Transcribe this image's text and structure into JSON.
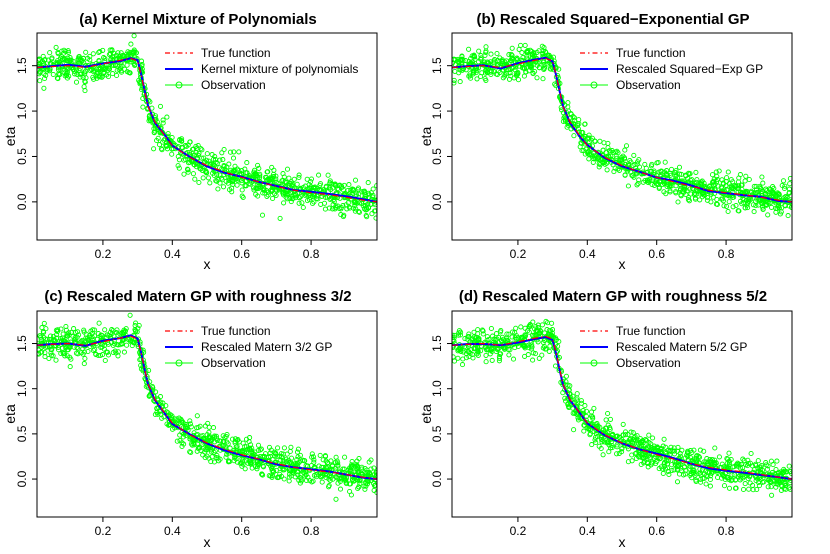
{
  "colors": {
    "true_function": "#ff0000",
    "fit": "#0000ff",
    "observation": "#00ff00",
    "frame": "#000000"
  },
  "chart_data": [
    {
      "type": "line",
      "title": "(a) Kernel Mixture of Polynomials",
      "xlabel": "x",
      "ylabel": "eta",
      "xlim": [
        0.01,
        0.99
      ],
      "ylim": [
        -0.42,
        1.86
      ],
      "xticks": [
        "0.2",
        "0.4",
        "0.6",
        "0.8"
      ],
      "yticks": [
        "0.0",
        "0.5",
        "1.0",
        "1.5"
      ],
      "legend_position": "top-right",
      "series": [
        {
          "name": "True function",
          "style": "dash-dot",
          "color": "#ff0000"
        },
        {
          "name": "Kernel mixture of polynomials",
          "style": "solid",
          "color": "#0000ff"
        },
        {
          "name": "Observation",
          "style": "points",
          "color": "#00ff00"
        }
      ]
    },
    {
      "type": "line",
      "title": "(b) Rescaled Squared−Exponential GP",
      "xlabel": "x",
      "ylabel": "eta",
      "xlim": [
        0.01,
        0.99
      ],
      "ylim": [
        -0.42,
        1.86
      ],
      "xticks": [
        "0.2",
        "0.4",
        "0.6",
        "0.8"
      ],
      "yticks": [
        "0.0",
        "0.5",
        "1.0",
        "1.5"
      ],
      "legend_position": "top-right",
      "series": [
        {
          "name": "True function",
          "style": "dash-dot",
          "color": "#ff0000"
        },
        {
          "name": "Rescaled Squared−Exp GP",
          "style": "solid",
          "color": "#0000ff"
        },
        {
          "name": "Observation",
          "style": "points",
          "color": "#00ff00"
        }
      ]
    },
    {
      "type": "line",
      "title": "(c) Rescaled Matern GP with roughness 3/2",
      "xlabel": "x",
      "ylabel": "eta",
      "xlim": [
        0.01,
        0.99
      ],
      "ylim": [
        -0.42,
        1.86
      ],
      "xticks": [
        "0.2",
        "0.4",
        "0.6",
        "0.8"
      ],
      "yticks": [
        "0.0",
        "0.5",
        "1.0",
        "1.5"
      ],
      "legend_position": "top-right",
      "series": [
        {
          "name": "True function",
          "style": "dash-dot",
          "color": "#ff0000"
        },
        {
          "name": "Rescaled Matern 3/2 GP",
          "style": "solid",
          "color": "#0000ff"
        },
        {
          "name": "Observation",
          "style": "points",
          "color": "#00ff00"
        }
      ]
    },
    {
      "type": "line",
      "title": "(d) Rescaled Matern GP with roughness 5/2",
      "xlabel": "x",
      "ylabel": "eta",
      "xlim": [
        0.01,
        0.99
      ],
      "ylim": [
        -0.42,
        1.86
      ],
      "xticks": [
        "0.2",
        "0.4",
        "0.6",
        "0.8"
      ],
      "yticks": [
        "0.0",
        "0.5",
        "1.0",
        "1.5"
      ],
      "legend_position": "top-right",
      "series": [
        {
          "name": "True function",
          "style": "dash-dot",
          "color": "#ff0000"
        },
        {
          "name": "Rescaled Matern 5/2 GP",
          "style": "solid",
          "color": "#0000ff"
        },
        {
          "name": "Observation",
          "style": "points",
          "color": "#00ff00"
        }
      ]
    }
  ],
  "true_function": {
    "x": [
      0.01,
      0.05,
      0.1,
      0.15,
      0.2,
      0.25,
      0.28,
      0.3,
      0.31,
      0.32,
      0.33,
      0.35,
      0.38,
      0.4,
      0.45,
      0.5,
      0.55,
      0.6,
      0.65,
      0.7,
      0.75,
      0.8,
      0.85,
      0.9,
      0.95,
      0.99
    ],
    "y": [
      1.48,
      1.49,
      1.5,
      1.48,
      1.52,
      1.56,
      1.58,
      1.55,
      1.4,
      1.22,
      1.05,
      0.88,
      0.72,
      0.62,
      0.49,
      0.4,
      0.33,
      0.27,
      0.22,
      0.17,
      0.13,
      0.1,
      0.08,
      0.05,
      0.02,
      0.0
    ]
  },
  "observations": {
    "count": 1000,
    "noise_sd": 0.085
  }
}
